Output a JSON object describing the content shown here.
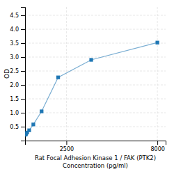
{
  "chart_data": {
    "type": "line",
    "xlabel": [
      "Rat Focal Adhesion Kinase 1 / FAK (PTK2)",
      "Concentration (pg/ml)"
    ],
    "ylabel": "OD",
    "x": [
      31.25,
      62.5,
      125,
      250,
      500,
      1000,
      2000,
      4000,
      8000
    ],
    "values": [
      0.213,
      0.245,
      0.29,
      0.37,
      0.58,
      1.05,
      2.27,
      2.9,
      3.52
    ],
    "marker": "square",
    "xlim": [
      0,
      8500
    ],
    "ylim": [
      0,
      4.8
    ],
    "xticks": [
      2500,
      8000
    ],
    "yticks": [
      0.5,
      {
        "value": 1.0,
        "label": "1.0"
      },
      1.5,
      {
        "value": 2.0,
        "label": "2.0"
      },
      2.5,
      {
        "value": 3.0,
        "label": "3.0"
      },
      3.5,
      {
        "value": 4.0,
        "label": "4.0"
      },
      4.5
    ],
    "grid": true
  }
}
